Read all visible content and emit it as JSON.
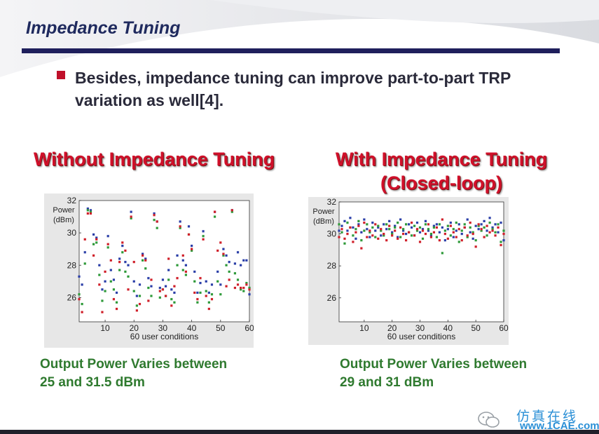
{
  "slide": {
    "title": "Impedance Tuning",
    "bullet": "Besides, impedance tuning can improve part-to-part TRP variation as well[4].",
    "colors": {
      "title": "#1f2a5e",
      "rule": "#1f1f5c",
      "bullet": "#c0102a",
      "heading": "#d0102a",
      "caption": "#2f7a2f"
    }
  },
  "watermark": {
    "text": "仿真在线",
    "site": "www.1CAE.com"
  },
  "chart_data": [
    {
      "type": "scatter",
      "heading": "Without Impedance Tuning",
      "caption_line1": "Output Power Varies between",
      "caption_line2": "25 and 31.5 dBm",
      "xlabel": "60 user conditions",
      "ylabel": "Power (dBm)",
      "xlim": [
        1,
        60
      ],
      "ylim": [
        24.5,
        32
      ],
      "xticks": [
        10,
        20,
        30,
        40,
        50,
        60
      ],
      "yticks": [
        26,
        28,
        30,
        32
      ],
      "grid": false,
      "series": [
        {
          "color": "#2b3fa8",
          "y": [
            27.3,
            26.8,
            28.8,
            31.5,
            31.4,
            29.9,
            29.7,
            28.0,
            26.5,
            27.0,
            29.8,
            27.7,
            27.1,
            26.3,
            28.4,
            29.2,
            28.2,
            28.0,
            31.3,
            27.0,
            26.1,
            26.8,
            28.7,
            28.4,
            27.2,
            26.7,
            31.2,
            30.7,
            26.6,
            27.1,
            26.7,
            27.7,
            26.5,
            26.3,
            28.6,
            30.7,
            28.3,
            28.0,
            30.4,
            29.2,
            27.6,
            26.3,
            26.9,
            30.1,
            27.0,
            26.3,
            26.8,
            31.3,
            27.6,
            26.8,
            29.0,
            28.6,
            28.2,
            31.4,
            28.1,
            28.8,
            28.0,
            28.3,
            28.3,
            26.2
          ]
        },
        {
          "color": "#2f9a3a",
          "y": [
            26.2,
            25.6,
            28.1,
            31.4,
            31.3,
            29.3,
            29.4,
            27.4,
            25.8,
            26.4,
            29.1,
            27.0,
            26.5,
            25.7,
            27.7,
            28.8,
            27.6,
            27.3,
            30.9,
            26.4,
            25.5,
            26.1,
            28.3,
            27.8,
            26.6,
            26.1,
            30.8,
            30.3,
            26.0,
            26.5,
            26.1,
            27.1,
            25.9,
            25.7,
            28.0,
            30.3,
            27.7,
            27.4,
            29.9,
            28.9,
            27.0,
            25.7,
            26.3,
            29.8,
            26.4,
            25.7,
            26.2,
            31.0,
            27.0,
            26.2,
            28.6,
            28.0,
            27.6,
            31.3,
            27.5,
            27.1,
            26.5,
            26.4,
            26.9,
            26.6
          ]
        },
        {
          "color": "#d0202a",
          "y": [
            25.9,
            25.1,
            29.6,
            31.2,
            31.2,
            28.6,
            29.6,
            26.8,
            25.1,
            27.6,
            29.3,
            28.3,
            25.9,
            25.3,
            28.2,
            29.4,
            28.9,
            26.5,
            31.0,
            28.2,
            25.2,
            25.6,
            28.6,
            28.3,
            25.8,
            27.1,
            31.1,
            30.7,
            26.4,
            26.5,
            26.1,
            28.4,
            25.5,
            26.7,
            27.2,
            30.4,
            28.6,
            27.6,
            29.9,
            29.0,
            26.3,
            25.9,
            27.2,
            29.6,
            26.1,
            25.3,
            25.9,
            31.3,
            28.9,
            29.4,
            28.7,
            26.7,
            27.1,
            31.4,
            26.6,
            26.8,
            26.6,
            26.6,
            26.8,
            26.5
          ]
        }
      ]
    },
    {
      "type": "scatter",
      "heading": "With Impedance Tuning\n(Closed-loop)",
      "heading_line1": "With Impedance Tuning",
      "heading_line2": "(Closed-loop)",
      "caption_line1": "Output Power Varies between",
      "caption_line2": "29 and 31 dBm",
      "xlabel": "60 user conditions",
      "ylabel": "Power (dBm)",
      "xlim": [
        1,
        60
      ],
      "ylim": [
        24.5,
        32
      ],
      "xticks": [
        10,
        20,
        30,
        40,
        50,
        60
      ],
      "yticks": [
        26,
        28,
        30,
        32
      ],
      "grid": false,
      "series": [
        {
          "color": "#2b3fa8",
          "y": [
            30.2,
            30.5,
            30.8,
            30.2,
            31.0,
            30.4,
            29.7,
            30.6,
            30.1,
            30.9,
            30.3,
            29.8,
            30.7,
            30.2,
            30.4,
            29.9,
            30.6,
            30.3,
            30.8,
            30.1,
            30.5,
            29.8,
            30.9,
            30.2,
            30.0,
            30.6,
            30.4,
            29.9,
            30.7,
            30.1,
            30.3,
            30.8,
            30.2,
            29.9,
            30.5,
            30.6,
            30.1,
            30.4,
            29.6,
            30.3,
            30.7,
            29.8,
            30.2,
            30.6,
            30.0,
            30.4,
            30.9,
            30.1,
            29.7,
            30.5,
            30.3,
            30.6,
            30.8,
            30.2,
            31.0,
            30.4,
            30.6,
            30.1,
            30.7,
            29.6
          ]
        },
        {
          "color": "#2f9a3a",
          "y": [
            30.6,
            30.1,
            29.4,
            30.7,
            30.4,
            29.9,
            30.3,
            30.8,
            29.6,
            30.2,
            30.6,
            30.1,
            30.4,
            29.8,
            30.5,
            30.2,
            29.9,
            30.6,
            30.3,
            30.0,
            30.4,
            30.7,
            29.8,
            30.3,
            30.6,
            30.1,
            29.9,
            30.5,
            30.2,
            30.4,
            29.7,
            30.6,
            30.3,
            30.0,
            30.4,
            29.8,
            30.6,
            28.8,
            30.2,
            30.5,
            29.9,
            30.3,
            30.7,
            29.5,
            30.2,
            30.6,
            29.8,
            30.4,
            30.1,
            29.6,
            30.5,
            30.2,
            30.4,
            29.9,
            30.7,
            30.3,
            30.1,
            30.6,
            29.5,
            30.2
          ]
        },
        {
          "color": "#d0202a",
          "y": [
            29.8,
            30.3,
            29.7,
            30.0,
            30.4,
            29.5,
            30.1,
            30.5,
            29.1,
            30.7,
            29.8,
            30.2,
            29.9,
            30.6,
            29.7,
            30.3,
            30.0,
            29.6,
            30.5,
            29.9,
            30.2,
            29.7,
            30.4,
            30.0,
            29.6,
            30.1,
            30.7,
            29.9,
            30.3,
            29.5,
            30.2,
            30.0,
            30.6,
            29.8,
            30.1,
            30.4,
            29.6,
            30.9,
            30.0,
            29.7,
            30.5,
            30.1,
            29.8,
            30.3,
            29.6,
            30.4,
            29.9,
            30.7,
            30.0,
            29.2,
            30.6,
            30.3,
            29.8,
            30.5,
            30.1,
            30.2,
            29.9,
            30.4,
            29.3,
            30.0
          ]
        }
      ]
    }
  ]
}
